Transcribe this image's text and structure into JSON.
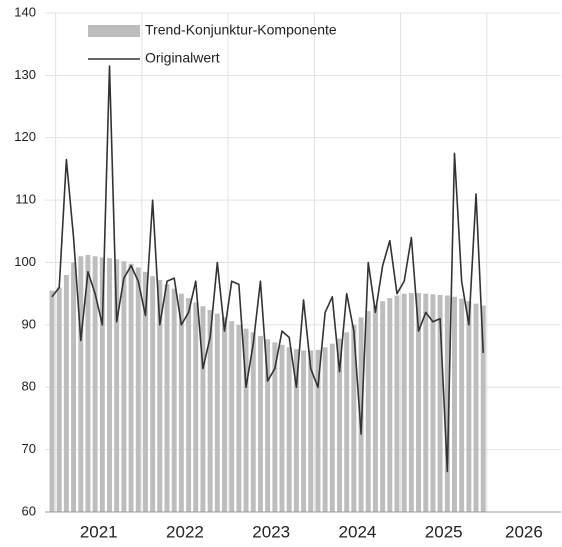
{
  "chart_data": {
    "type": "bar_line",
    "x": [
      2020.958,
      2021.042,
      2021.125,
      2021.208,
      2021.292,
      2021.375,
      2021.458,
      2021.542,
      2021.625,
      2021.708,
      2021.792,
      2021.875,
      2021.958,
      2022.042,
      2022.125,
      2022.208,
      2022.292,
      2022.375,
      2022.458,
      2022.542,
      2022.625,
      2022.708,
      2022.792,
      2022.875,
      2022.958,
      2023.042,
      2023.125,
      2023.208,
      2023.292,
      2023.375,
      2023.458,
      2023.542,
      2023.625,
      2023.708,
      2023.792,
      2023.875,
      2023.958,
      2024.042,
      2024.125,
      2024.208,
      2024.292,
      2024.375,
      2024.458,
      2024.542,
      2024.625,
      2024.708,
      2024.792,
      2024.875,
      2024.958,
      2025.042,
      2025.125,
      2025.208,
      2025.292,
      2025.375,
      2025.458,
      2025.542,
      2025.625,
      2025.708,
      2025.792,
      2025.875,
      2025.958
    ],
    "series": [
      {
        "name": "Trend-Konjunktur-Komponente",
        "kind": "bar",
        "color": "#bdbdbd",
        "values": [
          95.5,
          96,
          98,
          100,
          101,
          101.2,
          101,
          100.8,
          100.7,
          100.5,
          100.2,
          99.8,
          99.2,
          98.5,
          97.8,
          97.2,
          96.5,
          95.8,
          95,
          94.3,
          93.6,
          93,
          92.4,
          91.8,
          91.2,
          90.6,
          90,
          89.4,
          88.8,
          88.2,
          87.7,
          87.2,
          86.8,
          86.4,
          86.1,
          85.9,
          85.9,
          86,
          86.4,
          87,
          87.8,
          88.8,
          90,
          91.2,
          92.2,
          93.1,
          93.8,
          94.3,
          94.7,
          95,
          95.1,
          95.1,
          95,
          94.9,
          94.8,
          94.7,
          94.5,
          94.2,
          93.8,
          93.4,
          93.1
        ]
      },
      {
        "name": "Originalwert",
        "kind": "line",
        "color": "#333333",
        "values": [
          94.5,
          96,
          116.5,
          104,
          87.5,
          98.5,
          95,
          90,
          131.5,
          90.5,
          97.5,
          99.5,
          97,
          91.5,
          110,
          90,
          97,
          97.5,
          90,
          92,
          97,
          83,
          88,
          100,
          89,
          97,
          96.5,
          80,
          87,
          97,
          81,
          83,
          89,
          88,
          80,
          94,
          83,
          80,
          92,
          94.5,
          82.5,
          95,
          89,
          72.5,
          100,
          92,
          99.5,
          103.5,
          95,
          97,
          104,
          89,
          92,
          90.5,
          91,
          66.5,
          117.5,
          97,
          90,
          111,
          85.5
        ]
      }
    ],
    "xlim": [
      2020.877,
      2026.86
    ],
    "xticks": [
      {
        "value": 2021,
        "label": "2021"
      },
      {
        "value": 2022,
        "label": "2022"
      },
      {
        "value": 2023,
        "label": "2023"
      },
      {
        "value": 2024,
        "label": "2024"
      },
      {
        "value": 2025,
        "label": "2025"
      },
      {
        "value": 2026,
        "label": "2026"
      }
    ],
    "ylim": [
      60,
      140
    ],
    "yticks": [
      60,
      70,
      80,
      90,
      100,
      110,
      120,
      130,
      140
    ],
    "grid": true
  }
}
